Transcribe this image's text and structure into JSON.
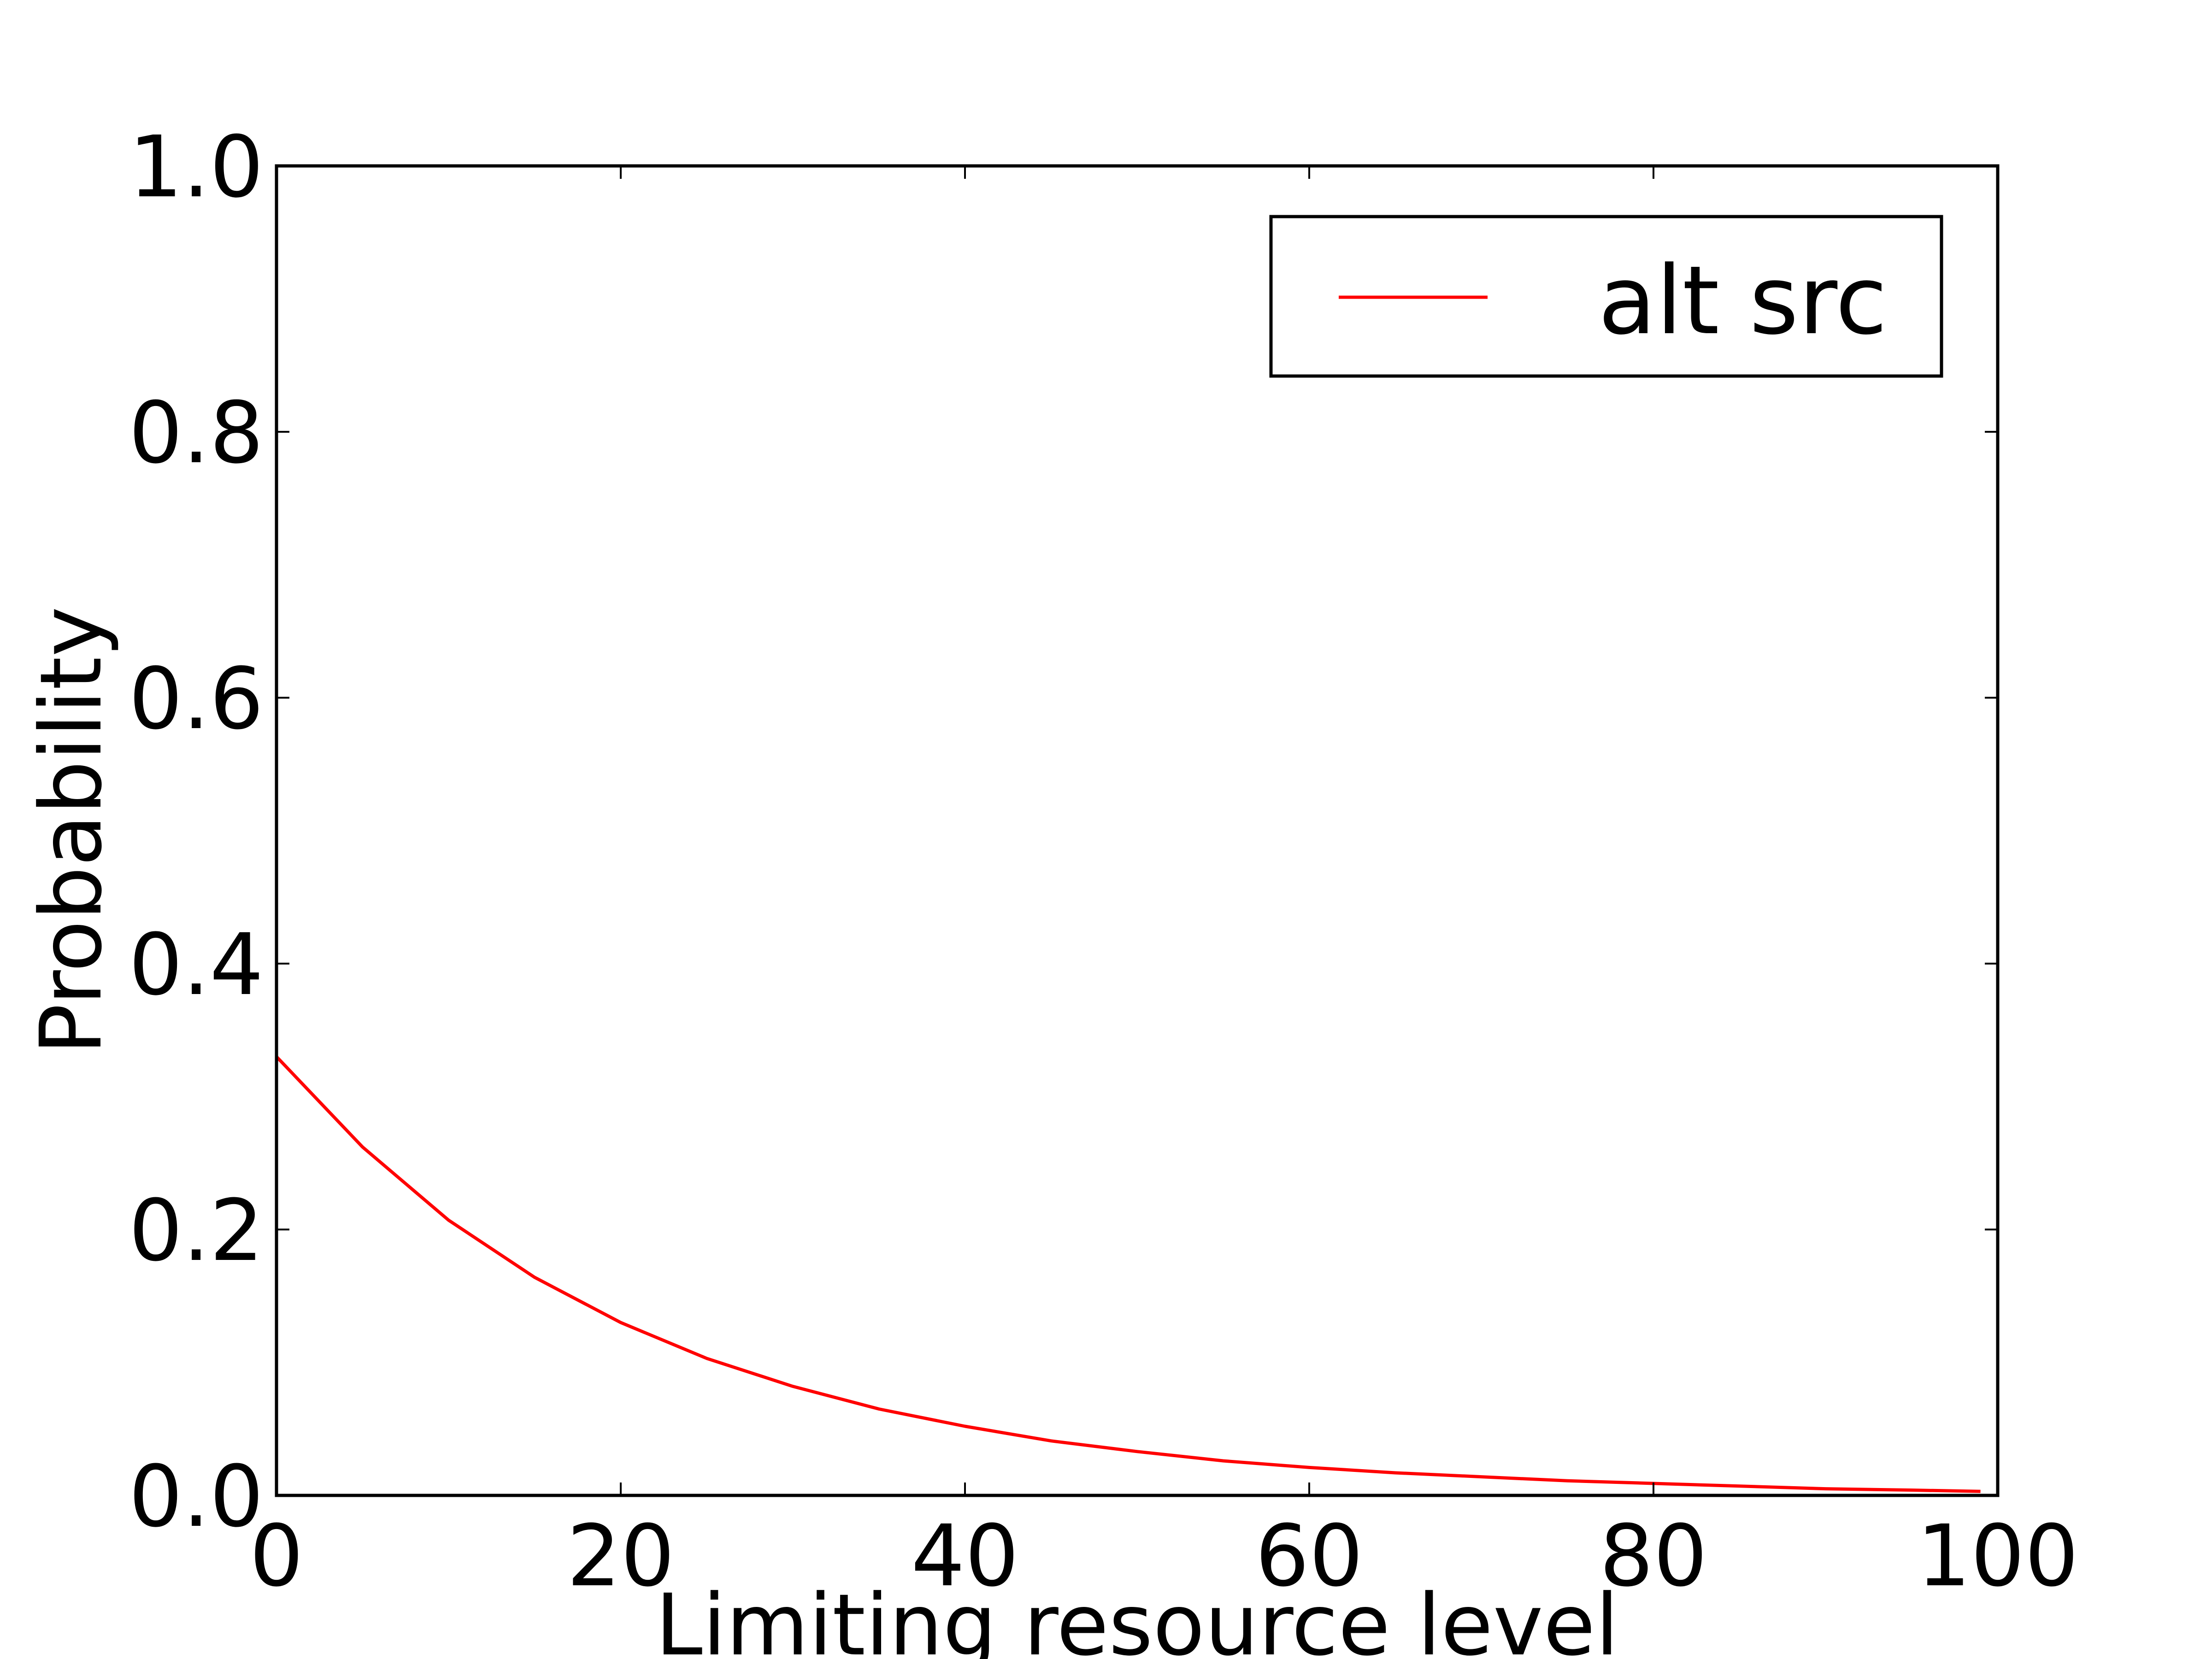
{
  "chart_data": {
    "type": "line",
    "title": "",
    "xlabel": "Limiting resource level",
    "ylabel": "Probability",
    "xlim": [
      0,
      100
    ],
    "ylim": [
      0.0,
      1.0
    ],
    "x_ticks": [
      0,
      20,
      40,
      60,
      80,
      100
    ],
    "x_tick_labels": [
      "0",
      "20",
      "40",
      "60",
      "80",
      "100"
    ],
    "y_ticks": [
      0.0,
      0.2,
      0.4,
      0.6,
      0.8,
      1.0
    ],
    "y_tick_labels": [
      "0.0",
      "0.2",
      "0.4",
      "0.6",
      "0.8",
      "1.0"
    ],
    "grid": false,
    "legend_position": "upper right",
    "series": [
      {
        "name": "alt src",
        "color": "#ff0000",
        "x": [
          0,
          5,
          10,
          15,
          20,
          25,
          30,
          35,
          40,
          45,
          50,
          55,
          60,
          65,
          70,
          75,
          80,
          85,
          90,
          95,
          99
        ],
        "y": [
          0.33,
          0.262,
          0.207,
          0.164,
          0.13,
          0.103,
          0.082,
          0.065,
          0.052,
          0.041,
          0.033,
          0.026,
          0.021,
          0.017,
          0.014,
          0.011,
          0.009,
          0.007,
          0.005,
          0.004,
          0.003
        ]
      }
    ]
  }
}
